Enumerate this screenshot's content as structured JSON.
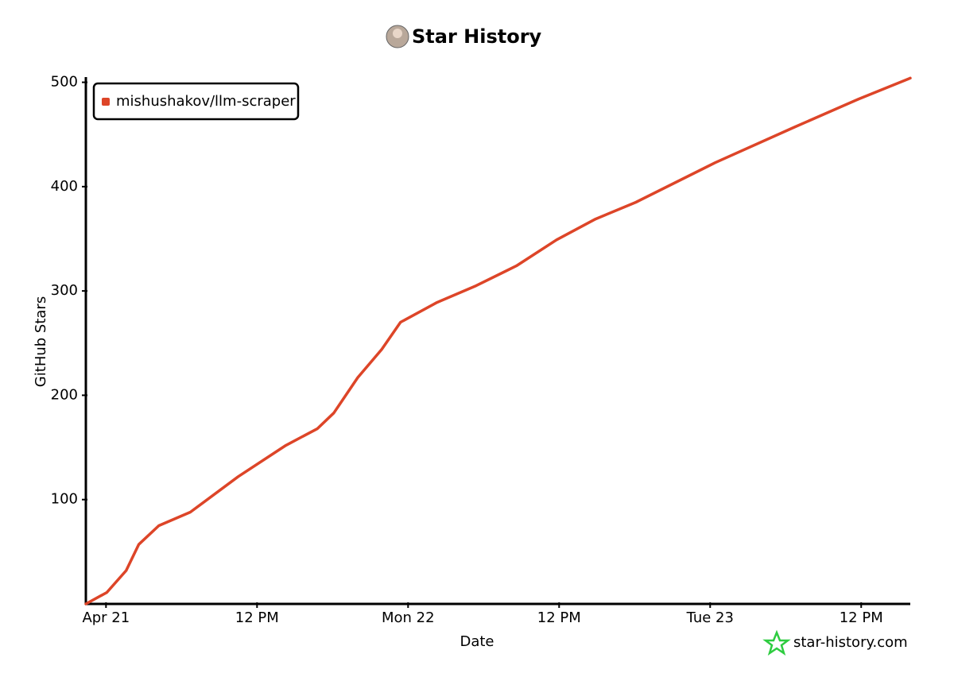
{
  "chart_data": {
    "type": "line",
    "title": "Star History",
    "x_label": "Date",
    "y_label": "GitHub Stars",
    "x": [
      -1.6,
      0.06,
      1.6,
      2.6,
      4.2,
      6.7,
      10.5,
      14.3,
      16.8,
      18.1,
      20.0,
      21.9,
      23.4,
      26.3,
      29.4,
      32.6,
      35.8,
      38.9,
      42.1,
      48.4,
      54.7,
      59.8,
      63.9
    ],
    "series": [
      {
        "name": "mishushakov/llm-scraper",
        "color": "#dd4528",
        "values": [
          0,
          11,
          32,
          57,
          75,
          88,
          122,
          152,
          168,
          183,
          217,
          244,
          270,
          289,
          305,
          324,
          349,
          369,
          385,
          423,
          457,
          484,
          504
        ]
      }
    ],
    "xlim": [
      -1.6,
      63.9
    ],
    "xticks": [
      {
        "value": 0,
        "label": "Apr 21"
      },
      {
        "value": 12,
        "label": "12 PM"
      },
      {
        "value": 24,
        "label": "Mon 22"
      },
      {
        "value": 36,
        "label": "12 PM"
      },
      {
        "value": 48,
        "label": "Tue 23"
      },
      {
        "value": 60,
        "label": "12 PM"
      }
    ],
    "ylim": [
      0,
      505
    ],
    "yticks": [
      100,
      200,
      300,
      400,
      500
    ],
    "legend": "top-left",
    "watermark": "star-history.com"
  }
}
